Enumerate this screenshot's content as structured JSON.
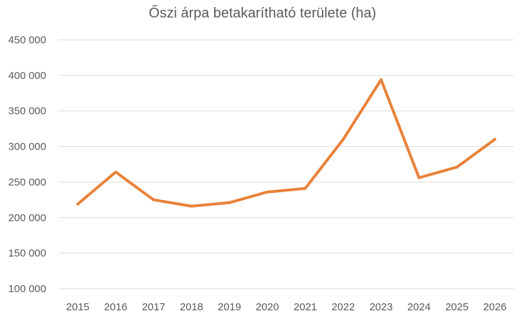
{
  "chart_data": {
    "type": "line",
    "title": "Őszi árpa betakarítható területe (ha)",
    "xlabel": "",
    "ylabel": "",
    "x": [
      "2015",
      "2016",
      "2017",
      "2018",
      "2019",
      "2020",
      "2021",
      "2022",
      "2023",
      "2024",
      "2025",
      "2026"
    ],
    "series": [
      {
        "values": [
          219000,
          264000,
          225000,
          216000,
          221000,
          236000,
          241000,
          310000,
          394000,
          256000,
          271000,
          310000
        ]
      }
    ],
    "ylim": [
      100000,
      450000
    ],
    "y_ticks": [
      100000,
      150000,
      200000,
      250000,
      300000,
      350000,
      400000,
      450000
    ],
    "y_tick_labels": [
      "100 000",
      "150 000",
      "200 000",
      "250 000",
      "300 000",
      "350 000",
      "400 000",
      "450 000"
    ],
    "grid": "horizontal",
    "legend": "none",
    "line_color": "#E8823A",
    "grid_color": "#D9D9D9",
    "text_color": "#595959"
  }
}
